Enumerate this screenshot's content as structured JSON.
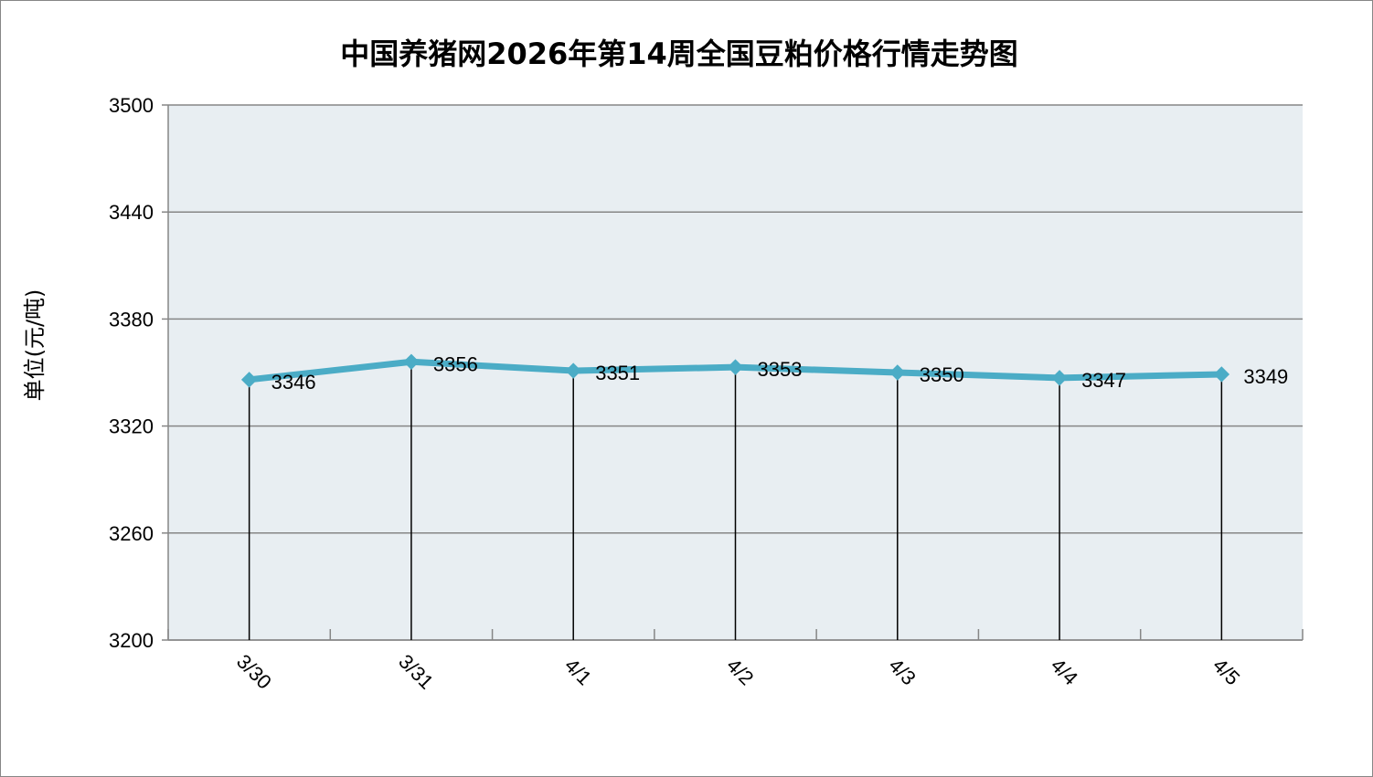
{
  "chart_data": {
    "type": "line",
    "title": "中国养猪网2026年第14周全国豆粕价格行情走势图",
    "ylabel": "单位(元/吨)",
    "xlabel": "",
    "categories": [
      "3/30",
      "3/31",
      "4/1",
      "4/2",
      "4/3",
      "4/4",
      "4/5"
    ],
    "series": [
      {
        "values": [
          3346,
          3356,
          3351,
          3353,
          3350,
          3347,
          3349
        ]
      }
    ],
    "ylim": [
      3200,
      3500
    ],
    "yticks": [
      "3200",
      "3260",
      "3320",
      "3380",
      "3440",
      "3500"
    ],
    "data_labels": [
      "3346",
      "3356",
      "3351",
      "3353",
      "3350",
      "3347",
      "3349"
    ],
    "grid": true,
    "legend": "none",
    "colors": {
      "line": "#4bacc6",
      "plot_background": "#e8eef2",
      "gridline": "#868686",
      "drop_line": "#000000"
    }
  }
}
